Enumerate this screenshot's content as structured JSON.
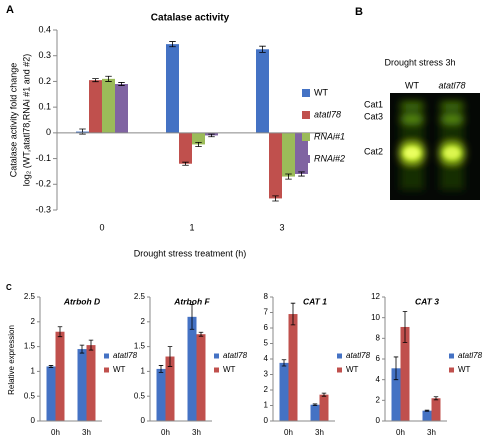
{
  "chart_data": [
    {
      "type": "bar",
      "panel": "A",
      "title": "Catalase activity",
      "y_label": [
        "Catalase activity fold change",
        "log₂ (WT,atatl78,RNAi #1 and #2)"
      ],
      "x_label": "Drought stress treatment (h)",
      "categories": [
        "0",
        "1",
        "3"
      ],
      "series": [
        {
          "name": "WT",
          "color": "#4472c4",
          "values": [
            0.005,
            0.345,
            0.325
          ],
          "errors": [
            0.01,
            0.01,
            0.012
          ]
        },
        {
          "name": "atatl78",
          "italic": true,
          "color": "#c0504d",
          "values": [
            0.205,
            -0.12,
            -0.255
          ],
          "errors": [
            0.006,
            0.006,
            0.01
          ]
        },
        {
          "name": "RNAi#1",
          "italic": true,
          "color": "#9bbb59",
          "values": [
            0.21,
            -0.045,
            -0.17
          ],
          "errors": [
            0.01,
            0.008,
            0.01
          ]
        },
        {
          "name": "RNAi#2",
          "italic": true,
          "color": "#8064a2",
          "values": [
            0.19,
            -0.01,
            -0.16
          ],
          "errors": [
            0.006,
            0.005,
            0.008
          ]
        }
      ],
      "ylim": [
        -0.3,
        0.4
      ],
      "yticks": [
        -0.3,
        -0.2,
        -0.1,
        0,
        0.1,
        0.2,
        0.3,
        0.4
      ],
      "legend": "right"
    },
    {
      "type": "bar",
      "panel": "C",
      "title": "Atrboh D",
      "y_label": [
        "Relative expression"
      ],
      "categories": [
        "0h",
        "3h"
      ],
      "series": [
        {
          "name": "atatl78",
          "italic": true,
          "color": "#4472c4",
          "values": [
            1.1,
            1.45
          ],
          "errors": [
            0.02,
            0.08
          ]
        },
        {
          "name": "WT",
          "color": "#c0504d",
          "values": [
            1.8,
            1.53
          ],
          "errors": [
            0.1,
            0.1
          ]
        }
      ],
      "ylim": [
        0,
        2.5
      ],
      "yticks": [
        0,
        0.5,
        1,
        1.5,
        2,
        2.5
      ],
      "legend": "right"
    },
    {
      "type": "bar",
      "title": "Atrboh F",
      "categories": [
        "0h",
        "3h"
      ],
      "series": [
        {
          "name": "atatl78",
          "italic": true,
          "color": "#4472c4",
          "values": [
            1.05,
            2.1
          ],
          "errors": [
            0.07,
            0.25
          ]
        },
        {
          "name": "WT",
          "color": "#c0504d",
          "values": [
            1.3,
            1.75
          ],
          "errors": [
            0.2,
            0.04
          ]
        }
      ],
      "ylim": [
        0,
        2.5
      ],
      "yticks": [
        0,
        0.5,
        1,
        1.5,
        2,
        2.5
      ],
      "legend": "right"
    },
    {
      "type": "bar",
      "title": "CAT 1",
      "categories": [
        "0h",
        "3h"
      ],
      "series": [
        {
          "name": "atatl78",
          "italic": true,
          "color": "#4472c4",
          "values": [
            3.75,
            1.05
          ],
          "errors": [
            0.2,
            0.05
          ]
        },
        {
          "name": "WT",
          "color": "#c0504d",
          "values": [
            6.9,
            1.7
          ],
          "errors": [
            0.7,
            0.1
          ]
        }
      ],
      "ylim": [
        0,
        8
      ],
      "yticks": [
        0,
        1,
        2,
        3,
        4,
        5,
        6,
        7,
        8
      ],
      "legend": "right"
    },
    {
      "type": "bar",
      "title": "CAT 3",
      "categories": [
        "0h",
        "3h"
      ],
      "series": [
        {
          "name": "atatl78",
          "italic": true,
          "color": "#4472c4",
          "values": [
            5.1,
            1.0
          ],
          "errors": [
            1.1,
            0.05
          ]
        },
        {
          "name": "WT",
          "color": "#c0504d",
          "values": [
            9.1,
            2.2
          ],
          "errors": [
            1.5,
            0.15
          ]
        }
      ],
      "ylim": [
        0,
        12
      ],
      "yticks": [
        0,
        2,
        4,
        6,
        8,
        10,
        12
      ],
      "legend": "right"
    }
  ],
  "gel": {
    "panel": "B",
    "title": "Drought stress  3h",
    "lanes": [
      "WT",
      "atatl78"
    ],
    "bands": [
      "Cat1",
      "Cat3",
      "Cat2"
    ]
  }
}
